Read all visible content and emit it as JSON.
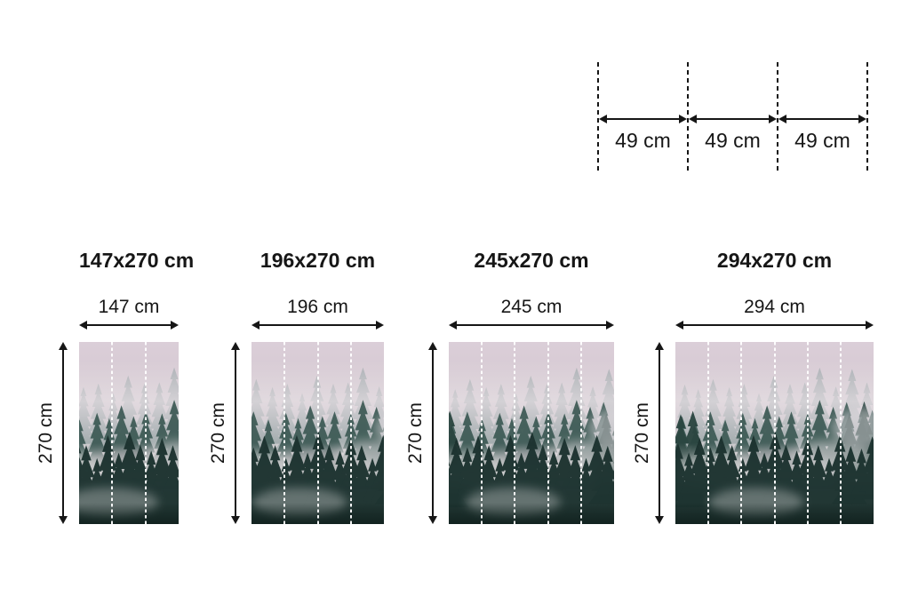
{
  "page": {
    "background": "#ffffff",
    "ink": "#161616"
  },
  "roll_diagram": {
    "segments": [
      {
        "label": "49 cm"
      },
      {
        "label": "49 cm"
      },
      {
        "label": "49 cm"
      }
    ]
  },
  "figures": [
    {
      "title": "147x270 cm",
      "width_label": "147 cm",
      "height_label": "270 cm",
      "width_cm": 147,
      "height_cm": 270,
      "panels": 3
    },
    {
      "title": "196x270 cm",
      "width_label": "196 cm",
      "height_label": "270 cm",
      "width_cm": 196,
      "height_cm": 270,
      "panels": 4
    },
    {
      "title": "245x270 cm",
      "width_label": "245 cm",
      "height_label": "270 cm",
      "width_cm": 245,
      "height_cm": 270,
      "panels": 5
    },
    {
      "title": "294x270 cm",
      "width_label": "294 cm",
      "height_label": "270 cm",
      "width_cm": 294,
      "height_cm": 270,
      "panels": 6
    }
  ],
  "artwork": {
    "subject": "misty-pine-forest-photo",
    "seam_line_color": "#ffffff",
    "palette": {
      "fog_top_pink": "#d9cbd5",
      "fog_grey": "#c6cbca",
      "far_trees": "#87999a",
      "mid_trees": "#3d5a55",
      "near_trees": "#1d3330",
      "bottom_dark": "#122220"
    }
  }
}
